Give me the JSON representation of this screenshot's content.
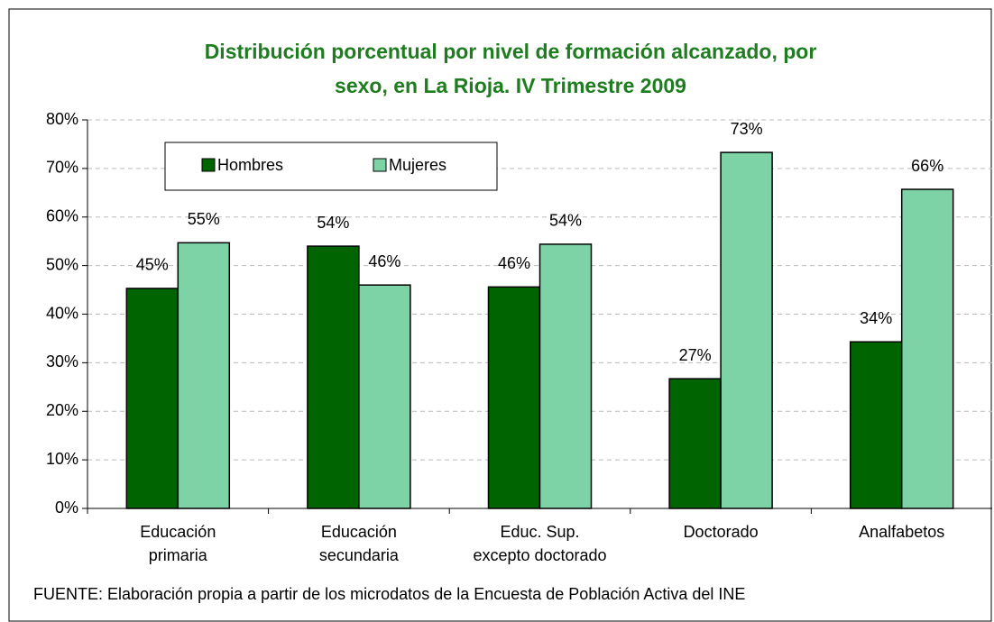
{
  "chart_data": {
    "type": "bar",
    "title": [
      "Distribución porcentual por nivel de formación alcanzado, por",
      "sexo, en La Rioja. IV Trimestre 2009"
    ],
    "categories": [
      [
        "Educación",
        "primaria"
      ],
      [
        "Educación",
        "secundaria"
      ],
      [
        "Educ. Sup.",
        "excepto doctorado"
      ],
      [
        "Doctorado"
      ],
      [
        "Analfabetos"
      ]
    ],
    "series": [
      {
        "name": "Hombres",
        "color": "#006400",
        "values": [
          45.3,
          54.0,
          45.6,
          26.7,
          34.3
        ],
        "value_labels": [
          "45%",
          "54%",
          "46%",
          "27%",
          "34%"
        ]
      },
      {
        "name": "Mujeres",
        "color": "#7dd3a6",
        "values": [
          54.7,
          46.0,
          54.4,
          73.3,
          65.7
        ],
        "value_labels": [
          "55%",
          "46%",
          "54%",
          "73%",
          "66%"
        ]
      }
    ],
    "ylim": [
      0,
      80
    ],
    "yticks": [
      {
        "value": 0,
        "label": "0%"
      },
      {
        "value": 10,
        "label": "10%"
      },
      {
        "value": 20,
        "label": "20%"
      },
      {
        "value": 30,
        "label": "30%"
      },
      {
        "value": 40,
        "label": "40%"
      },
      {
        "value": 50,
        "label": "50%"
      },
      {
        "value": 60,
        "label": "60%"
      },
      {
        "value": 70,
        "label": "70%"
      },
      {
        "value": 80,
        "label": "80%"
      }
    ],
    "grid": true,
    "legend": "top-left",
    "source": "FUENTE: Elaboración propia a partir de los microdatos de la Encuesta de Población Activa del INE"
  }
}
